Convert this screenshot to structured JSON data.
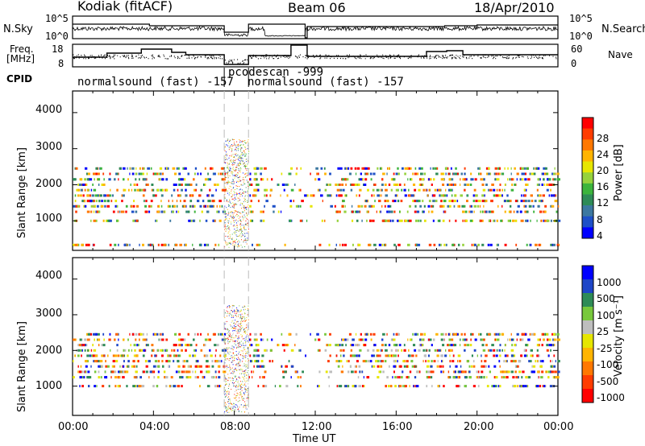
{
  "header": {
    "station": "Kodiak (fitACF)",
    "beam": "Beam 06",
    "date": "18/Apr/2010"
  },
  "strip_labels": {
    "nsky": "N.Sky",
    "nsearch": "N.Search",
    "freq_line1": "Freq.",
    "freq_line2": "[MHz]",
    "nave": "Nave",
    "cpid": "CPID",
    "nsky_ticks": [
      "10^5",
      "10^0"
    ],
    "nsearch_ticks": [
      "10^5",
      "10^0"
    ],
    "freq_ticks": [
      "18",
      "8"
    ],
    "nave_ticks": [
      "60",
      "0"
    ]
  },
  "cpid_labels": [
    {
      "text": "normalsound (fast) -157"
    },
    {
      "text": "pcodescan -999"
    },
    {
      "text": "normalsound (fast) -157"
    }
  ],
  "power_panel": {
    "ylabel": "Slant Range [km]",
    "y_ticks": [
      "4000",
      "3000",
      "2000",
      "1000"
    ],
    "colorbar_label": "Power [dB]",
    "colorbar_ticks": [
      "28",
      "24",
      "20",
      "16",
      "12",
      "8",
      "4"
    ],
    "colorbar_colors": [
      "#ff0000",
      "#ff3c00",
      "#ff7800",
      "#ffb400",
      "#e6e600",
      "#96d23c",
      "#3cb43c",
      "#2e8b57",
      "#3c78a0",
      "#1e50c8",
      "#0000ff"
    ]
  },
  "velocity_panel": {
    "ylabel": "Slant Range [km]",
    "y_ticks": [
      "4000",
      "3000",
      "2000",
      "1000"
    ],
    "colorbar_label": "Velocity [m s⁻¹]",
    "colorbar_ticks": [
      "1000",
      "500",
      "100",
      "25",
      "-25",
      "-100",
      "-500",
      "-1000"
    ],
    "colorbar_colors": [
      "#0000ff",
      "#1e46c8",
      "#2e8b57",
      "#78c83c",
      "#bebebe",
      "#e6e600",
      "#ffb400",
      "#ff7800",
      "#ff3c00",
      "#ff0000"
    ]
  },
  "x_axis": {
    "label": "Time UT",
    "ticks": [
      "00:00",
      "04:00",
      "08:00",
      "12:00",
      "16:00",
      "20:00",
      "00:00"
    ]
  },
  "chart_data": [
    {
      "type": "line",
      "title": "N.Sky / N.Search",
      "x": "Time UT (hours)",
      "ylim": [
        0,
        5
      ],
      "yscale": "log10 (10^0 to 10^5)"
    },
    {
      "type": "line",
      "title": "Freq. / Nave",
      "series": [
        {
          "name": "Freq. [MHz]",
          "ylim": [
            8,
            18
          ]
        },
        {
          "name": "Nave",
          "ylim": [
            0,
            60
          ]
        }
      ],
      "cpid_segments": [
        {
          "label": "normalsound (fast) -157",
          "start_hour": 0,
          "end_hour": 7.5
        },
        {
          "label": "pcodescan -999",
          "start_hour": 7.5,
          "end_hour": 8.7
        },
        {
          "label": "normalsound (fast) -157",
          "start_hour": 8.7,
          "end_hour": 24
        }
      ]
    },
    {
      "type": "heatmap",
      "title": "Power [dB]",
      "xlabel": "Time UT",
      "ylabel": "Slant Range [km]",
      "xlim": [
        0,
        24
      ],
      "ylim": [
        180,
        4600
      ],
      "zlim": [
        0,
        30
      ],
      "range_bands_km": [
        330,
        1000,
        1250,
        1400,
        1550,
        1700,
        1850,
        2000,
        2150,
        2300,
        2450
      ],
      "note_gap_hours": [
        7.5,
        8.7
      ]
    },
    {
      "type": "heatmap",
      "title": "Velocity [m s-1]",
      "xlabel": "Time UT",
      "ylabel": "Slant Range [km]",
      "xlim": [
        0,
        24
      ],
      "ylim": [
        180,
        4600
      ],
      "zlim": [
        -1000,
        1000
      ],
      "range_bands_km": [
        1000,
        1250,
        1400,
        1550,
        1700,
        1850,
        2000,
        2150,
        2300,
        2450
      ]
    }
  ]
}
